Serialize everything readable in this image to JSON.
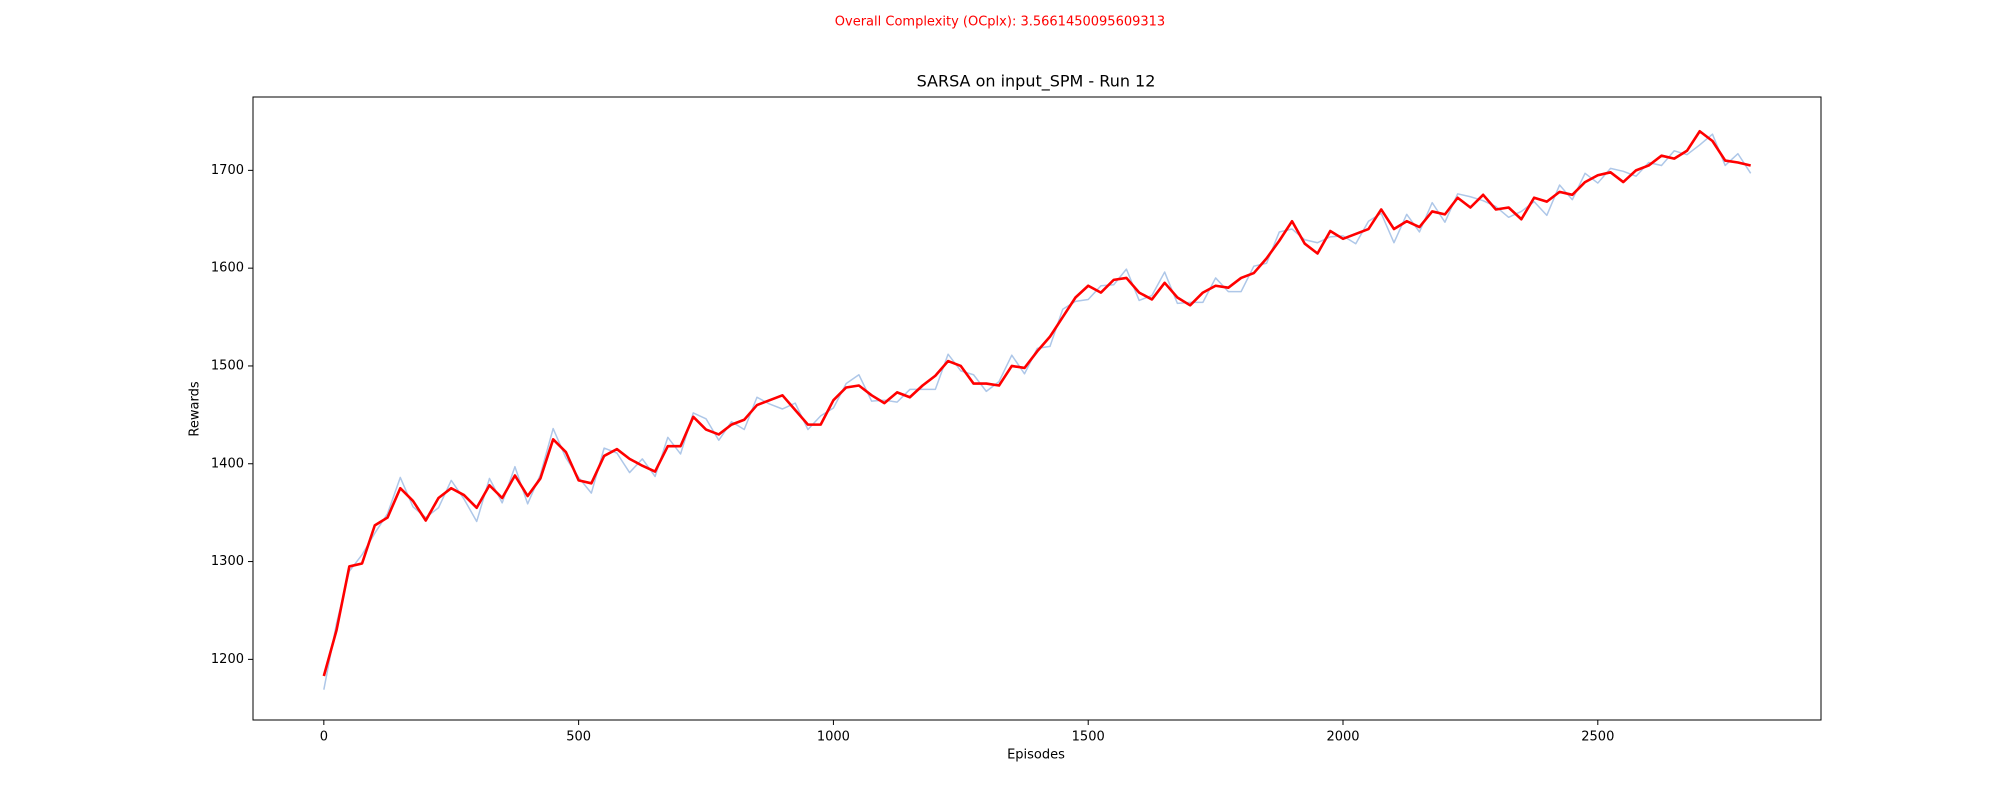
{
  "chart_data": {
    "type": "line",
    "suptitle": "Overall Complexity (OCplx): 3.5661450095609313",
    "suptitle_color": "#ff0000",
    "title": "SARSA on input_SPM - Run 12",
    "x_label": "Episodes",
    "y_label": "Rewards",
    "x": [
      0,
      25,
      50,
      75,
      100,
      125,
      150,
      175,
      200,
      225,
      250,
      275,
      300,
      325,
      350,
      375,
      400,
      425,
      450,
      475,
      500,
      525,
      550,
      575,
      600,
      625,
      650,
      675,
      700,
      725,
      750,
      775,
      800,
      825,
      850,
      875,
      900,
      925,
      950,
      975,
      1000,
      1025,
      1050,
      1075,
      1100,
      1125,
      1150,
      1175,
      1200,
      1225,
      1250,
      1275,
      1300,
      1325,
      1350,
      1375,
      1400,
      1425,
      1450,
      1475,
      1500,
      1525,
      1550,
      1575,
      1600,
      1625,
      1650,
      1675,
      1700,
      1725,
      1750,
      1775,
      1800,
      1825,
      1850,
      1875,
      1900,
      1925,
      1950,
      1975,
      2000,
      2025,
      2050,
      2075,
      2100,
      2125,
      2150,
      2175,
      2200,
      2225,
      2250,
      2275,
      2300,
      2325,
      2350,
      2375,
      2400,
      2425,
      2450,
      2475,
      2500,
      2525,
      2550,
      2575,
      2600,
      2625,
      2650,
      2675,
      2700,
      2725,
      2750,
      2775,
      2800
    ],
    "series": [
      {
        "color": "#aec7e8",
        "values": [
          1169,
          1237,
          1290,
          1307,
          1329,
          1349,
          1386,
          1356,
          1345,
          1355,
          1383,
          1364,
          1341,
          1385,
          1360,
          1397,
          1359,
          1389,
          1436,
          1406,
          1386,
          1370,
          1416,
          1411,
          1391,
          1405,
          1387,
          1427,
          1410,
          1452,
          1446,
          1424,
          1443,
          1435,
          1468,
          1461,
          1456,
          1462,
          1435,
          1449,
          1457,
          1482,
          1491,
          1464,
          1465,
          1463,
          1476,
          1476,
          1476,
          1512,
          1495,
          1491,
          1474,
          1484,
          1511,
          1492,
          1518,
          1520,
          1558,
          1566,
          1568,
          1582,
          1583,
          1599,
          1567,
          1572,
          1596,
          1564,
          1565,
          1565,
          1590,
          1576,
          1576,
          1602,
          1605,
          1637,
          1640,
          1629,
          1626,
          1632,
          1633,
          1625,
          1648,
          1656,
          1626,
          1655,
          1637,
          1667,
          1647,
          1676,
          1673,
          1669,
          1663,
          1652,
          1658,
          1668,
          1654,
          1685,
          1670,
          1697,
          1687,
          1702,
          1699,
          1694,
          1708,
          1705,
          1720,
          1716,
          1726,
          1737,
          1705,
          1717,
          1697
        ]
      },
      {
        "color": "#ff0000",
        "values": [
          1183,
          1230,
          1295,
          1298,
          1337,
          1345,
          1375,
          1362,
          1342,
          1365,
          1375,
          1368,
          1355,
          1378,
          1365,
          1388,
          1367,
          1385,
          1425,
          1412,
          1383,
          1380,
          1408,
          1415,
          1405,
          1398,
          1392,
          1418,
          1418,
          1448,
          1435,
          1430,
          1440,
          1445,
          1460,
          1465,
          1470,
          1455,
          1440,
          1440,
          1465,
          1478,
          1480,
          1470,
          1462,
          1473,
          1468,
          1480,
          1490,
          1505,
          1500,
          1482,
          1482,
          1480,
          1500,
          1498,
          1515,
          1530,
          1550,
          1570,
          1582,
          1575,
          1588,
          1590,
          1575,
          1568,
          1585,
          1570,
          1562,
          1575,
          1582,
          1580,
          1590,
          1595,
          1610,
          1628,
          1648,
          1625,
          1615,
          1638,
          1630,
          1635,
          1640,
          1660,
          1640,
          1648,
          1642,
          1658,
          1655,
          1672,
          1662,
          1675,
          1660,
          1662,
          1650,
          1672,
          1668,
          1678,
          1675,
          1688,
          1695,
          1698,
          1688,
          1700,
          1705,
          1715,
          1712,
          1720,
          1740,
          1730,
          1710,
          1708,
          1705
        ]
      }
    ],
    "xlim": [
      -139,
      2938
    ],
    "ylim": [
      1138,
      1775
    ],
    "xticks": [
      0,
      500,
      1000,
      1500,
      2000,
      2500
    ],
    "yticks": [
      1200,
      1300,
      1400,
      1500,
      1600,
      1700
    ],
    "grid": false
  }
}
